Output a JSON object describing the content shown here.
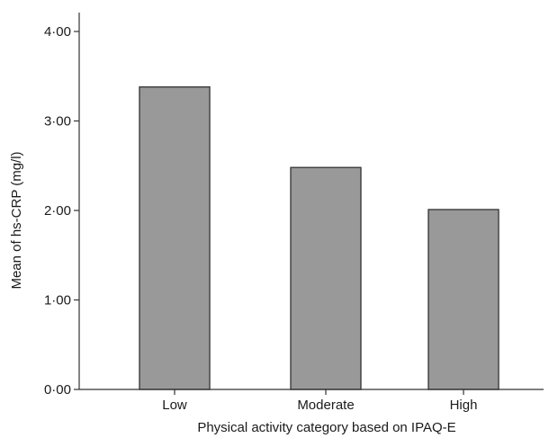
{
  "chart_data": {
    "type": "bar",
    "categories": [
      "Low",
      "Moderate",
      "High"
    ],
    "values": [
      3.38,
      2.48,
      2.01
    ],
    "xlabel": "Physical activity category based on IPAQ-E",
    "ylabel": "Mean of hs-CRP (mg/l)",
    "ylim": [
      0,
      4
    ],
    "yticks": [
      0,
      1,
      2,
      3,
      4
    ],
    "ytick_labels": [
      "0·00",
      "1·00",
      "2·00",
      "3·00",
      "4·00"
    ],
    "grid": false,
    "legend": "none",
    "colors": {
      "bar_fill": "#999999",
      "bar_stroke": "#3c3c3c",
      "axis": "#333333"
    }
  }
}
